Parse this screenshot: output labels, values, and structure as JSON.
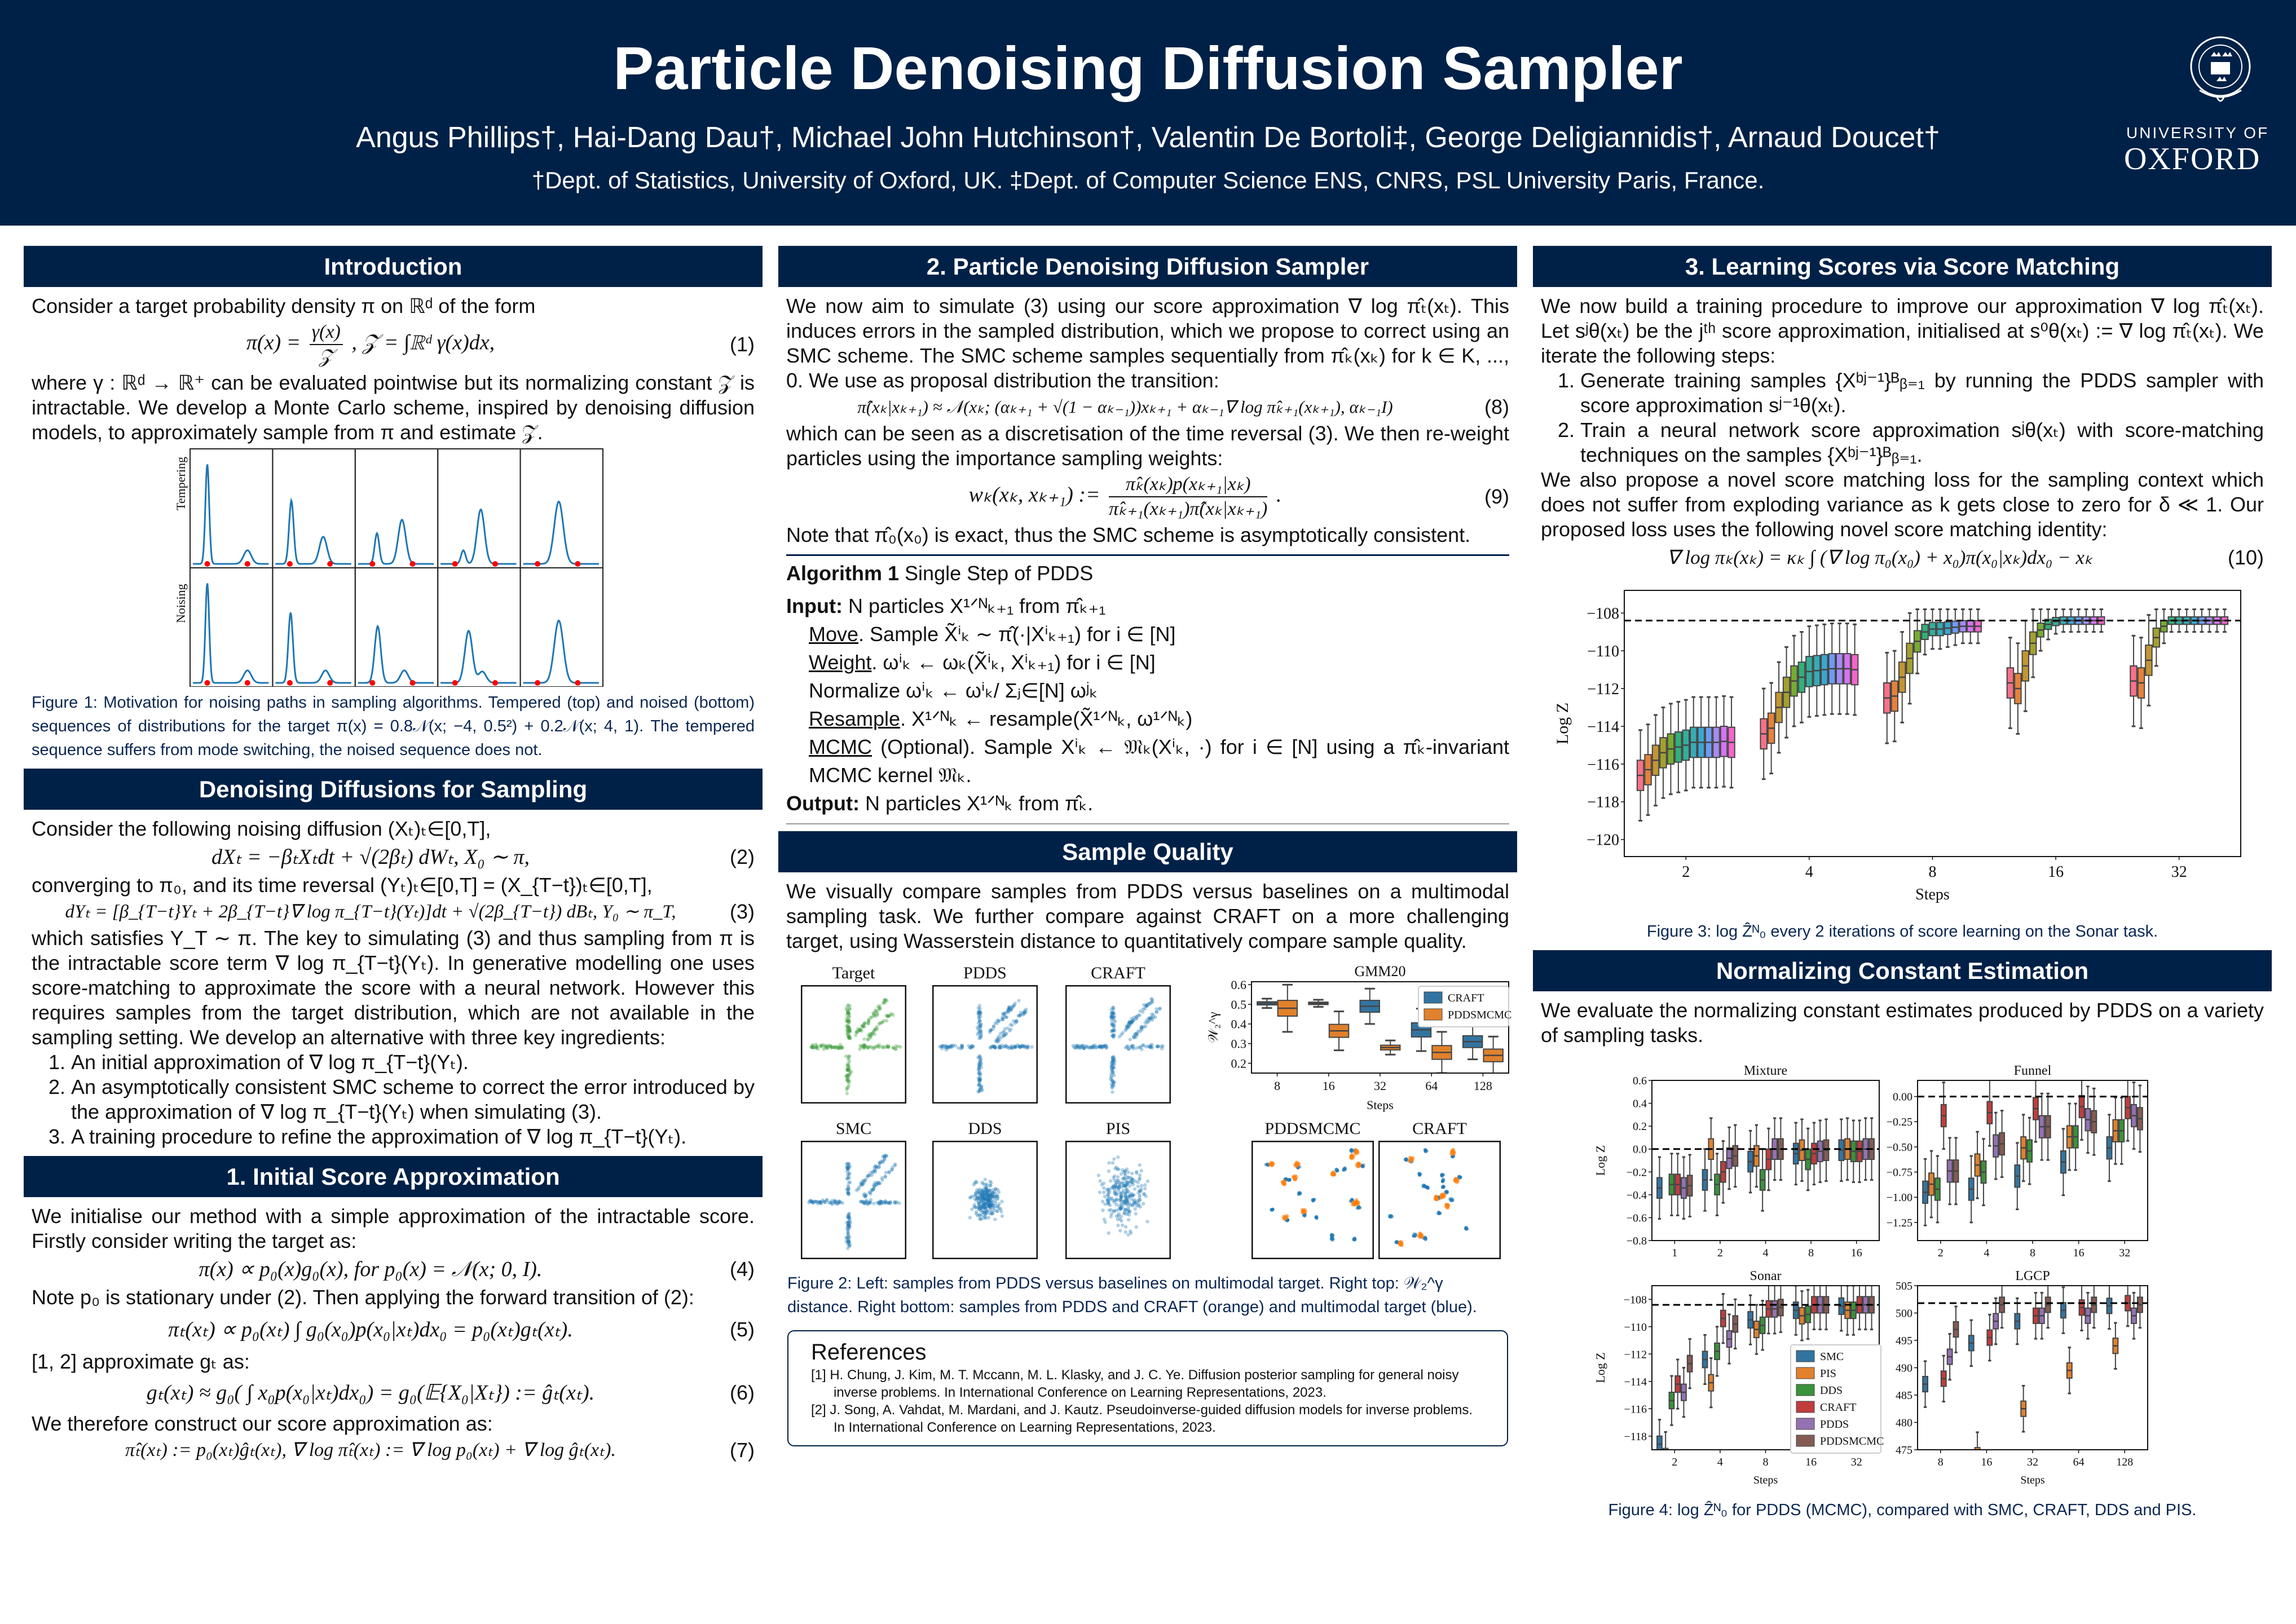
{
  "header": {
    "title": "Particle Denoising Diffusion Sampler",
    "authors": "Angus Phillips†, Hai-Dang Dau†, Michael John Hutchinson†, Valentin De Bortoli‡, George Deligiannidis†, Arnaud Doucet†",
    "affiliations": "†Dept. of Statistics, University of Oxford, UK.   ‡Dept. of Computer Science ENS, CNRS, PSL University Paris, France.",
    "logo": {
      "line1": "UNIVERSITY OF",
      "line2": "OXFORD"
    }
  },
  "intro": {
    "title": "Introduction",
    "p1": "Consider a target probability density π on ℝᵈ of the form",
    "eq1": {
      "lhs": "π(x) =",
      "num": "γ(x)",
      "den": "𝒵",
      "rest": ",        𝒵 = ∫ℝᵈ γ(x)dx,",
      "n": "(1)"
    },
    "p2": "where γ : ℝᵈ → ℝ⁺ can be evaluated pointwise but its normalizing constant 𝒵 is intractable.  We develop a Monte Carlo scheme, inspired by denoising diffusion models, to approximately sample from π and estimate 𝒵.",
    "fig1": {
      "row_labels": [
        "Tempering",
        "Noising"
      ],
      "caption": "Figure 1: Motivation for noising paths in sampling algorithms. Tempered (top) and noised (bottom) sequences of distributions for the target π(x) = 0.8𝒩(x; −4, 0.5²) + 0.2𝒩(x; 4, 1). The tempered sequence suffers from mode switching, the noised sequence does not."
    }
  },
  "denoising": {
    "title": "Denoising Diffusions for Sampling",
    "p1": "Consider the following noising diffusion (Xₜ)ₜ∈[0,T],",
    "eq2": {
      "text": "dXₜ = −βₜXₜdt + √(2βₜ) dWₜ,     X₀ ∼ π,",
      "n": "(2)"
    },
    "p2": "converging to π₀, and its time reversal (Yₜ)ₜ∈[0,T] = (X_{T−t})ₜ∈[0,T],",
    "eq3": {
      "text": "dYₜ = [β_{T−t}Yₜ + 2β_{T−t}∇ log π_{T−t}(Yₜ)]dt + √(2β_{T−t}) dBₜ,    Y₀ ∼ π_T,",
      "n": "(3)"
    },
    "p3": "which satisfies Y_T ∼ π.  The key to simulating (3) and thus sampling from π is the intractable score term ∇ log π_{T−t}(Yₜ). In generative modelling one uses score-matching to approximate the score with a neural network. However this requires samples from the target distribution, which are not available in the sampling setting. We develop an alternative with three key ingredients:",
    "list": [
      "An initial approximation of ∇ log π_{T−t}(Yₜ).",
      "An asymptotically consistent SMC scheme to correct the error introduced by the approximation of ∇ log π_{T−t}(Yₜ) when simulating (3).",
      "A training procedure to refine the approximation of ∇ log π_{T−t}(Yₜ)."
    ]
  },
  "initial": {
    "title": "1. Initial Score Approximation",
    "p1": "We initialise our method with a simple approximation of the intractable score. Firstly consider writing the target as:",
    "eq4": {
      "text": "π(x) ∝ p₀(x)g₀(x),     for  p₀(x) = 𝒩(x; 0, I).",
      "n": "(4)"
    },
    "p2": "Note p₀ is stationary under (2). Then applying the forward transition of (2):",
    "eq5": {
      "text": "πₜ(xₜ) ∝ p₀(xₜ) ∫ g₀(x₀)p(x₀|xₜ)dx₀ = p₀(xₜ)gₜ(xₜ).",
      "n": "(5)"
    },
    "p3": "[1, 2] approximate gₜ as:",
    "eq6": {
      "text": "gₜ(xₜ) ≈ g₀( ∫ x₀p(x₀|xₜ)dx₀) = g₀(𝔼{X₀|Xₜ}) := ĝₜ(xₜ).",
      "n": "(6)"
    },
    "p4": "We therefore construct our score approximation as:",
    "eq7": {
      "text": "π̂ₜ(xₜ) := p₀(xₜ)ĝₜ(xₜ),  ∇ log π̂ₜ(xₜ) := ∇ log p₀(xₜ) + ∇ log ĝₜ(xₜ).",
      "n": "(7)"
    }
  },
  "pdds": {
    "title": "2. Particle Denoising Diffusion Sampler",
    "p1": "We now aim to simulate (3) using our score approximation ∇ log π̂ₜ(xₜ).  This induces errors in the sampled distribution, which we propose to correct using an SMC scheme.  The SMC scheme samples sequentially from π̂ₖ(xₖ) for k ∈ K, ..., 0. We use as proposal distribution the transition:",
    "eq8": {
      "text": "π̂(xₖ|xₖ₊₁) ≈ 𝒩(xₖ; (αₖ₊₁ + √(1 − αₖ₋₁))xₖ₊₁ + αₖ₋₁∇ log π̂ₖ₊₁(xₖ₊₁), αₖ₋₁I)",
      "n": "(8)"
    },
    "p2": "which can be seen as a discretisation of the time reversal (3).  We then re-weight particles using the importance sampling weights:",
    "eq9": {
      "lhs": "wₖ(xₖ, xₖ₊₁) :=",
      "num": "π̂ₖ(xₖ)p(xₖ₊₁|xₖ)",
      "den": "π̂ₖ₊₁(xₖ₊₁)π̂(xₖ|xₖ₊₁)",
      "rest": ".",
      "n": "(9)"
    },
    "p3": "Note that π̂₀(x₀) is exact, thus the SMC scheme is asymptotically consistent.",
    "algorithm": {
      "label": "Algorithm 1",
      "name": "Single Step of PDDS",
      "input_label": "Input:",
      "input": "N particles X¹ᐟᴺₖ₊₁ from π̂ₖ₊₁",
      "steps": [
        {
          "name": "Move",
          "text": ". Sample X̃ⁱₖ ∼ π̂(·|Xⁱₖ₊₁) for i ∈ [N]"
        },
        {
          "name": "Weight",
          "text": ". ωⁱₖ ← ωₖ(X̃ⁱₖ, Xⁱₖ₊₁) for i ∈ [N]"
        },
        {
          "name": "Normalize",
          "text": " ωⁱₖ ← ωⁱₖ/ Σⱼ∈[N] ωʲₖ"
        },
        {
          "name": "Resample",
          "text": ". X¹ᐟᴺₖ ← resample(X̃¹ᐟᴺₖ, ω¹ᐟᴺₖ)"
        },
        {
          "name": "MCMC",
          "text": " (Optional). Sample Xⁱₖ ← 𝔐ₖ(Xⁱₖ, ·) for i ∈ [N] using a π̂ₖ-invariant MCMC kernel 𝔐ₖ."
        }
      ],
      "output_label": "Output:",
      "output": "N particles X¹ᐟᴺₖ from π̂ₖ."
    }
  },
  "quality": {
    "title": "Sample Quality",
    "p1": "We visually compare samples from PDDS versus baselines on a multimodal sampling task.  We further compare against CRAFT on a more challenging target, using Wasserstein distance to quantitatively compare sample quality.",
    "panels": [
      "Target",
      "PDDS",
      "CRAFT",
      "SMC",
      "DDS",
      "PIS"
    ],
    "panels_right": [
      "PDDSMCMC",
      "CRAFT"
    ],
    "caption": "Figure 2: Left: samples from PDDS versus baselines on multimodal target. Right top: 𝒲₂^γ distance. Right bottom: samples from PDDS and CRAFT (orange) and multimodal target (blue)."
  },
  "references": {
    "title": "References",
    "items": [
      "[1]  H. Chung, J. Kim, M. T. Mccann, M. L. Klasky, and J. C. Ye.  Diffusion posterior sampling for general noisy inverse problems. In International Conference on Learning Representations, 2023.",
      "[2]  J. Song, A. Vahdat, M. Mardani, and J. Kautz.  Pseudoinverse-guided diffusion models for inverse problems.  In International Conference on Learning Representations, 2023."
    ]
  },
  "learning": {
    "title": "3. Learning Scores via Score Matching",
    "p1": "We now build a training procedure to improve our approximation ∇ log π̂ₜ(xₜ). Let sʲθ(xₜ) be the jᵗʰ score approximation, initialised at s⁰θ(xₜ) := ∇ log π̂ₜ(xₜ). We iterate the following steps:",
    "list": [
      "Generate training samples {Xᵇʲ⁻¹}ᴮᵦ₌₁ by running the PDDS sampler with score approximation sʲ⁻¹θ(xₜ).",
      "Train a neural network score approximation sʲθ(xₜ) with score-matching techniques on the samples {Xᵇʲ⁻¹}ᴮᵦ₌₁."
    ],
    "p2": "We also propose a novel score matching loss for the sampling context which does not suffer from exploding variance as k gets close to zero for δ ≪ 1. Our proposed loss uses the following novel score matching identity:",
    "eq10": {
      "text": "∇ log πₖ(xₖ) = κₖ ∫ (∇ log π₀(x₀) + x₀)π(x₀|xₖ)dx₀ − xₖ",
      "n": "(10)"
    },
    "caption": "Figure 3: log Ẑᴺ₀ every 2 iterations of score learning on the Sonar task."
  },
  "normalizing": {
    "title": "Normalizing Constant Estimation",
    "p1": "We evaluate the normalizing constant estimates produced by PDDS on a variety of sampling tasks.",
    "caption": "Figure 4: log Ẑᴺ₀ for PDDS (MCMC), compared with SMC, CRAFT, DDS and PIS."
  },
  "chart_data": [
    {
      "id": "gmm20",
      "type": "box",
      "title": "GMM20",
      "xlabel": "Steps",
      "ylabel": "𝒲₂^γ",
      "categories": [
        "8",
        "16",
        "32",
        "64",
        "128"
      ],
      "series": [
        {
          "name": "CRAFT",
          "color": "#3274a1"
        },
        {
          "name": "PDDSMCMC",
          "color": "#e1812c"
        }
      ],
      "values": [
        [
          0.505,
          0.48
        ],
        [
          0.505,
          0.365
        ],
        [
          0.49,
          0.28
        ],
        [
          0.37,
          0.255
        ],
        [
          0.31,
          0.24
        ]
      ],
      "iqr": [
        [
          0.008,
          0.04
        ],
        [
          0.006,
          0.033
        ],
        [
          0.03,
          0.012
        ],
        [
          0.036,
          0.035
        ],
        [
          0.03,
          0.032
        ]
      ],
      "ylim": [
        0.15,
        0.615
      ],
      "yticks": [
        0.2,
        0.3,
        0.4,
        0.5,
        0.6
      ],
      "ytick_labels": [
        "0.2",
        "0.3",
        "0.4",
        "0.5",
        "0.6"
      ],
      "legend": "top-right"
    },
    {
      "id": "fig3",
      "type": "box",
      "title": "",
      "xlabel": "Steps",
      "ylabel": "Log Z",
      "categories": [
        "2",
        "4",
        "8",
        "16",
        "32"
      ],
      "palette": [
        "#f77189",
        "#e5823a",
        "#c29633",
        "#a3a031",
        "#77ab31",
        "#33b07a",
        "#35ad9c",
        "#37abb5",
        "#39a7d0",
        "#6e9bf4",
        "#a48cf4",
        "#d673f4",
        "#f565cc"
      ],
      "values": [
        [
          -116.6,
          -116.3,
          -115.8,
          -115.4,
          -115.2,
          -115.1,
          -115.0,
          -114.85,
          -114.85,
          -114.85,
          -114.85,
          -114.8,
          -114.85
        ],
        [
          -114.4,
          -114.1,
          -113.0,
          -112.2,
          -111.6,
          -111.4,
          -111.1,
          -111.05,
          -111.0,
          -110.95,
          -110.95,
          -110.95,
          -111.0
        ],
        [
          -112.5,
          -112.4,
          -111.4,
          -110.4,
          -109.5,
          -109.0,
          -108.85,
          -108.85,
          -108.8,
          -108.75,
          -108.7,
          -108.7,
          -108.7
        ],
        [
          -111.7,
          -112.0,
          -110.8,
          -109.6,
          -108.9,
          -108.6,
          -108.45,
          -108.4,
          -108.4,
          -108.4,
          -108.4,
          -108.4,
          -108.4
        ],
        [
          -111.6,
          -111.7,
          -110.5,
          -109.3,
          -108.7,
          -108.4,
          -108.4,
          -108.4,
          -108.4,
          -108.4,
          -108.4,
          -108.4,
          -108.4
        ]
      ],
      "iqr_default": 0.8,
      "ref": -108.4,
      "ylim": [
        -120.9,
        -106.8
      ],
      "yticks": [
        -120,
        -118,
        -116,
        -114,
        -112,
        -110,
        -108
      ],
      "ytick_labels": [
        "−120",
        "−118",
        "−116",
        "−114",
        "−112",
        "−110",
        "−108"
      ]
    },
    {
      "id": "mixture",
      "type": "box",
      "title": "Mixture",
      "ylabel": "Log Z",
      "xlabel": "",
      "categories": [
        "1",
        "2",
        "4",
        "8",
        "16"
      ],
      "values": [
        [
          -0.34,
          null,
          -0.31,
          -0.31,
          -0.34,
          -0.32
        ],
        [
          -0.27,
          0.0,
          -0.31,
          -0.2,
          -0.08,
          -0.06
        ],
        [
          -0.11,
          -0.06,
          -0.27,
          -0.09,
          0.0,
          0.0
        ],
        [
          -0.04,
          -0.01,
          -0.09,
          -0.04,
          -0.02,
          -0.01
        ],
        [
          -0.01,
          0.0,
          -0.02,
          -0.02,
          0.0,
          0.0
        ]
      ],
      "iqr_default": 0.09,
      "ref": 0,
      "ylim": [
        -0.8,
        0.6
      ],
      "yticks": [
        -0.8,
        -0.6,
        -0.4,
        -0.2,
        0,
        0.2,
        0.4,
        0.6
      ],
      "ytick_labels": [
        "−0.8",
        "−0.6",
        "−0.4",
        "−0.2",
        "0.0",
        "0.2",
        "0.4",
        "0.6"
      ]
    },
    {
      "id": "funnel",
      "type": "box",
      "title": "Funnel",
      "ylabel": "",
      "xlabel": "",
      "categories": [
        "2",
        "4",
        "8",
        "16",
        "32"
      ],
      "values": [
        [
          -0.95,
          -0.87,
          -0.92,
          -0.19,
          -0.74,
          -0.74
        ],
        [
          -0.92,
          -0.68,
          -0.75,
          -0.16,
          -0.49,
          -0.47
        ],
        [
          -0.79,
          -0.51,
          -0.54,
          -0.12,
          -0.3,
          -0.3
        ],
        [
          -0.65,
          -0.4,
          -0.4,
          -0.1,
          -0.23,
          -0.25
        ],
        [
          -0.51,
          -0.34,
          -0.34,
          -0.11,
          -0.19,
          -0.22
        ]
      ],
      "iqr_default": 0.11,
      "ref": 0,
      "ylim": [
        -1.43,
        0.16
      ],
      "yticks": [
        -1.25,
        -1.0,
        -0.75,
        -0.5,
        -0.25,
        0
      ],
      "ytick_labels": [
        "−1.25",
        "−1.00",
        "−0.75",
        "−0.50",
        "−0.25",
        "0.00"
      ]
    },
    {
      "id": "sonar",
      "type": "box",
      "title": "Sonar",
      "ylabel": "Log Z",
      "xlabel": "Steps",
      "categories": [
        "2",
        "4",
        "8",
        "16",
        "32"
      ],
      "values": [
        [
          -118.6,
          -119.5,
          -115.4,
          -114.2,
          -114.8,
          -112.7
        ],
        [
          -112.4,
          -114.1,
          -111.8,
          -109.4,
          -110.9,
          -109.8
        ],
        [
          -109.5,
          -110.2,
          -109.9,
          -108.7,
          -108.7,
          -108.6
        ],
        [
          -108.8,
          -109.2,
          -109.1,
          -108.4,
          -108.4,
          -108.4
        ],
        [
          -108.5,
          -108.8,
          -108.8,
          -108.4,
          -108.4,
          -108.4
        ]
      ],
      "iqr_default": 0.6,
      "ref": -108.4,
      "ylim": [
        -119,
        -107
      ],
      "yticks": [
        -118,
        -116,
        -114,
        -112,
        -110,
        -108
      ],
      "ytick_labels": [
        "−118",
        "−116",
        "−114",
        "−112",
        "−110",
        "−108"
      ],
      "legend": "center-right"
    },
    {
      "id": "lgcp",
      "type": "box",
      "title": "LGCP",
      "ylabel": "",
      "xlabel": "Steps",
      "categories": [
        "8",
        "16",
        "32",
        "64",
        "128"
      ],
      "values": [
        [
          487,
          null,
          null,
          488,
          492,
          497
        ],
        [
          494.5,
          474,
          null,
          495.5,
          498.5,
          501.5
        ],
        [
          498.5,
          482.5,
          null,
          499.5,
          499.5,
          501.5
        ],
        [
          500.5,
          489.5,
          null,
          501,
          499.5,
          501.5
        ],
        [
          501.3,
          494,
          null,
          501.8,
          499.5,
          501.5
        ]
      ],
      "iqr_default": 1.4,
      "ref": 501.8,
      "ylim": [
        475,
        505
      ],
      "yticks": [
        475,
        480,
        485,
        490,
        495,
        500,
        505
      ],
      "ytick_labels": [
        "475",
        "480",
        "485",
        "490",
        "495",
        "500",
        "505"
      ]
    }
  ],
  "fig4_series": [
    {
      "name": "SMC",
      "color": "#3274a1"
    },
    {
      "name": "PIS",
      "color": "#e1812c"
    },
    {
      "name": "DDS",
      "color": "#3a923a"
    },
    {
      "name": "CRAFT",
      "color": "#c03d3e"
    },
    {
      "name": "PDDS",
      "color": "#9372b2"
    },
    {
      "name": "PDDSMCMC",
      "color": "#845b53"
    }
  ]
}
